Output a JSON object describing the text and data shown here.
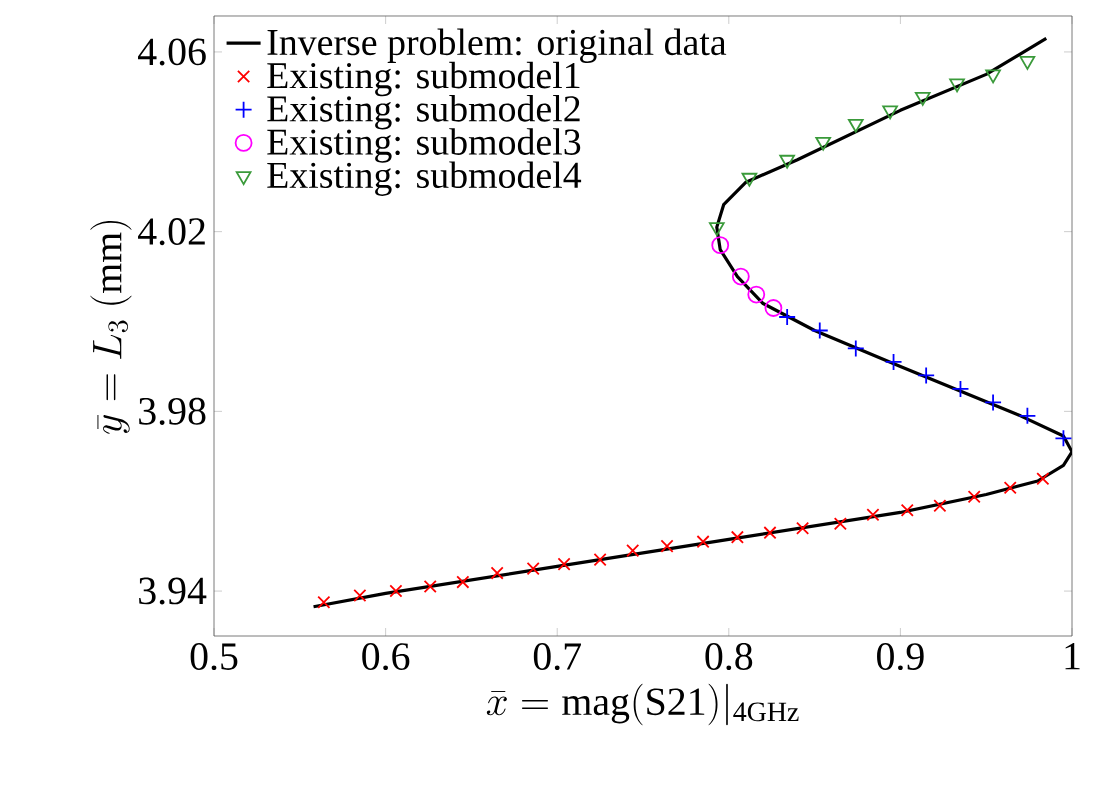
{
  "chart_data": {
    "type": "scatter",
    "xlabel": "\\bar{x} = \\mathrm{mag(S21)}|_{\\mathrm{4GHz}}",
    "ylabel": "\\bar{y} = L_3\\ \\mathrm{(mm)}",
    "xlim": [
      0.5,
      1
    ],
    "ylim": [
      3.93,
      4.068
    ],
    "xticks": [
      0.5,
      0.6,
      0.7,
      0.8,
      0.9,
      1
    ],
    "yticks": [
      3.94,
      3.98,
      4.02,
      4.06
    ],
    "grid": false,
    "legend": "top left",
    "series": [
      {
        "name": "Inverse problem: original data",
        "type": "line",
        "color": "#000000",
        "marker": "none",
        "x": [
          0.558,
          0.6,
          0.7,
          0.8,
          0.9,
          0.95,
          0.98,
          0.995,
          1.0,
          0.995,
          0.97,
          0.9,
          0.85,
          0.82,
          0.805,
          0.795,
          0.793,
          0.797,
          0.81,
          0.84,
          0.9,
          0.95,
          0.985
        ],
        "values": [
          3.9365,
          3.9395,
          3.9455,
          3.9515,
          3.9575,
          3.9615,
          3.9645,
          3.968,
          3.971,
          3.9745,
          3.979,
          3.99,
          3.998,
          4.004,
          4.01,
          4.016,
          4.021,
          4.026,
          4.031,
          4.036,
          4.047,
          4.055,
          4.063
        ]
      },
      {
        "name": "Existing: submodel1",
        "color": "#ff0000",
        "marker": "cross",
        "x": [
          0.564,
          0.585,
          0.606,
          0.626,
          0.645,
          0.665,
          0.686,
          0.704,
          0.725,
          0.744,
          0.764,
          0.785,
          0.805,
          0.824,
          0.843,
          0.865,
          0.884,
          0.904,
          0.923,
          0.943,
          0.964,
          0.983
        ],
        "values": [
          3.9375,
          3.939,
          3.94,
          3.941,
          3.942,
          3.944,
          3.945,
          3.946,
          3.947,
          3.949,
          3.95,
          3.951,
          3.952,
          3.953,
          3.954,
          3.955,
          3.957,
          3.958,
          3.959,
          3.961,
          3.963,
          3.965
        ]
      },
      {
        "name": "Existing: submodel2",
        "color": "#0000ff",
        "marker": "plus",
        "x": [
          0.834,
          0.853,
          0.874,
          0.896,
          0.915,
          0.935,
          0.954,
          0.974,
          0.995
        ],
        "values": [
          4.001,
          3.998,
          3.994,
          3.991,
          3.988,
          3.985,
          3.982,
          3.979,
          3.974
        ]
      },
      {
        "name": "Existing: submodel3",
        "color": "#ff00ff",
        "marker": "circle",
        "x": [
          0.795,
          0.807,
          0.816,
          0.826
        ],
        "values": [
          4.017,
          4.01,
          4.006,
          4.003
        ]
      },
      {
        "name": "Existing: submodel4",
        "color": "#3a9a3a",
        "marker": "triangle",
        "x": [
          0.793,
          0.812,
          0.834,
          0.855,
          0.874,
          0.894,
          0.913,
          0.933,
          0.954,
          0.974
        ],
        "values": [
          4.021,
          4.032,
          4.036,
          4.04,
          4.044,
          4.047,
          4.05,
          4.053,
          4.055,
          4.058
        ]
      }
    ]
  }
}
